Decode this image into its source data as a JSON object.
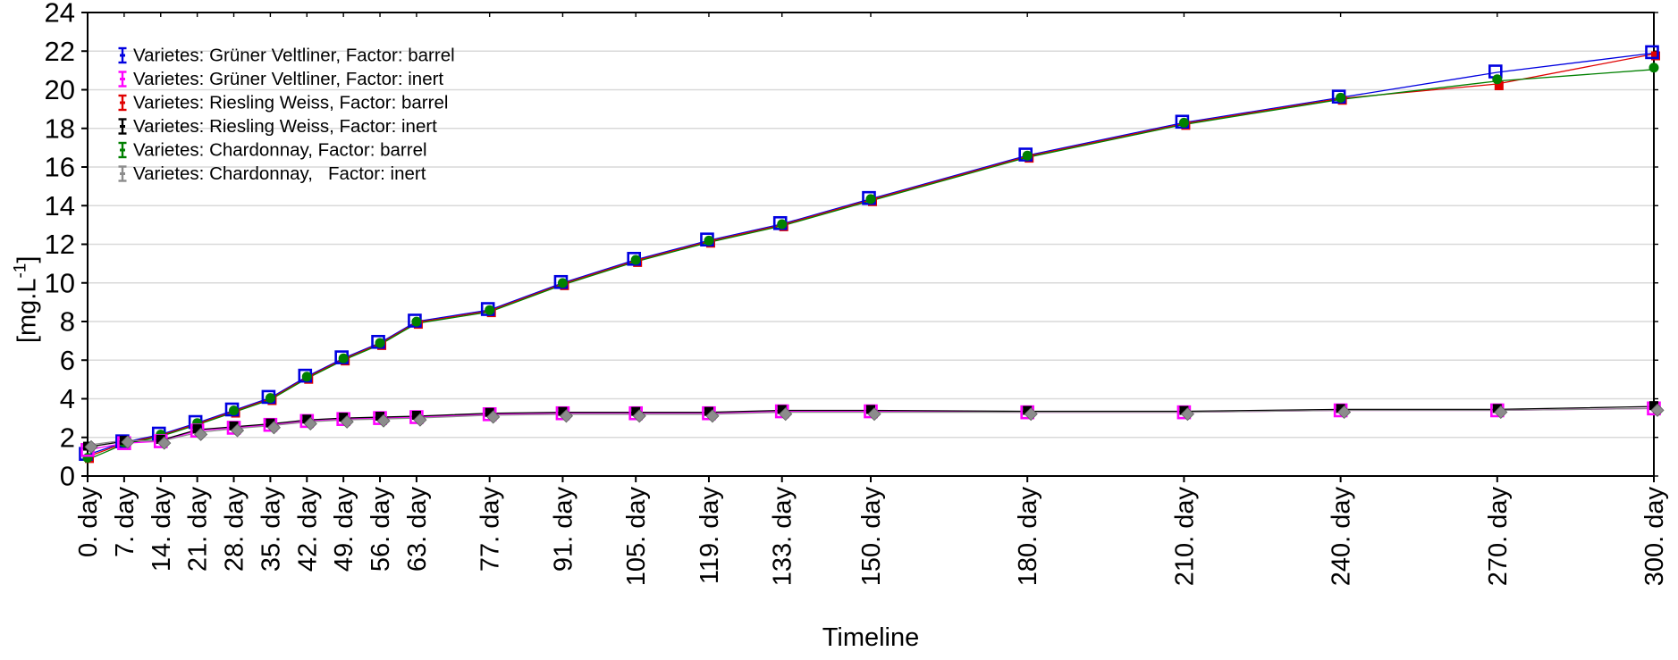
{
  "chart_data": {
    "type": "line",
    "title": "",
    "xlabel": "Timeline",
    "ylabel": "[mg.L-1]",
    "ylabel_parts": {
      "base": "[mg.L",
      "sup": "-1",
      "close": "]"
    },
    "xlim": [
      0,
      300
    ],
    "ylim": [
      0,
      24
    ],
    "ytick_step": 2,
    "ytick_labels": [
      "0",
      "2",
      "4",
      "6",
      "8",
      "10",
      "12",
      "14",
      "16",
      "18",
      "20",
      "22",
      "24"
    ],
    "grid": "horizontal-only",
    "legend_position": "top-left-inside",
    "x_days": [
      0,
      7,
      14,
      21,
      28,
      35,
      42,
      49,
      56,
      63,
      77,
      91,
      105,
      119,
      133,
      150,
      180,
      210,
      240,
      270,
      300
    ],
    "x_tick_labels": [
      "0. day",
      "7. day",
      "14. day",
      "21. day",
      "28. day",
      "35. day",
      "42. day",
      "49. day",
      "56. day",
      "63. day",
      "77. day",
      "91. day",
      "105. day",
      "119. day",
      "133. day",
      "150. day",
      "180. day",
      "210. day",
      "240. day",
      "270. day",
      "300. day"
    ],
    "series": [
      {
        "id": "gv-barrel",
        "name": "Varietes: Grüner Veltliner, Factor: barrel",
        "color": "#0000E0",
        "marker": "open-square",
        "values": [
          1.1,
          1.75,
          2.15,
          2.75,
          3.4,
          4.05,
          5.15,
          6.1,
          6.9,
          8.0,
          8.6,
          10.0,
          11.2,
          12.2,
          13.05,
          14.35,
          16.6,
          18.3,
          19.6,
          20.9,
          21.9
        ]
      },
      {
        "id": "gv-inert",
        "name": "Varietes: Grüner Veltliner, Factor: inert",
        "color": "#FF00FF",
        "marker": "open-square",
        "values": [
          1.35,
          1.7,
          1.8,
          2.35,
          2.5,
          2.65,
          2.85,
          2.95,
          3.0,
          3.05,
          3.2,
          3.25,
          3.25,
          3.25,
          3.35,
          3.35,
          3.3,
          3.3,
          3.4,
          3.4,
          3.5
        ]
      },
      {
        "id": "rw-barrel",
        "name": "Varietes: Riesling Weiss, Factor: barrel",
        "color": "#E00000",
        "marker": "filled-square",
        "values": [
          1.0,
          1.7,
          2.1,
          2.7,
          3.35,
          4.0,
          5.1,
          6.05,
          6.85,
          7.95,
          8.55,
          9.95,
          11.15,
          12.15,
          13.0,
          14.3,
          16.55,
          18.25,
          19.55,
          20.3,
          21.85
        ]
      },
      {
        "id": "rw-inert",
        "name": "Varietes: Riesling Weiss, Factor: inert",
        "color": "#000000",
        "marker": "filled-square",
        "values": [
          1.5,
          1.8,
          1.85,
          2.4,
          2.55,
          2.7,
          2.9,
          3.0,
          3.05,
          3.1,
          3.25,
          3.3,
          3.3,
          3.3,
          3.4,
          3.4,
          3.35,
          3.35,
          3.45,
          3.45,
          3.6
        ]
      },
      {
        "id": "ch-barrel",
        "name": "Varietes: Chardonnay, Factor: barrel",
        "color": "#008000",
        "marker": "filled-circle",
        "values": [
          0.85,
          1.65,
          2.05,
          2.65,
          3.3,
          3.95,
          5.05,
          6.0,
          6.8,
          7.9,
          8.5,
          9.9,
          11.1,
          12.1,
          12.95,
          14.25,
          16.5,
          18.2,
          19.5,
          20.45,
          21.05
        ]
      },
      {
        "id": "ch-inert",
        "name": "Varietes: Chardonnay,   Factor: inert",
        "color": "#8C8C8C",
        "marker": "filled-diamond",
        "values": [
          1.6,
          1.85,
          1.8,
          2.25,
          2.45,
          2.6,
          2.8,
          2.9,
          2.95,
          3.0,
          3.15,
          3.2,
          3.2,
          3.2,
          3.3,
          3.3,
          3.3,
          3.3,
          3.4,
          3.4,
          3.5
        ]
      }
    ],
    "colors": {
      "axis": "#000000",
      "gridline": "#D9D9D9",
      "text": "#000000",
      "background": "#FFFFFF"
    }
  }
}
